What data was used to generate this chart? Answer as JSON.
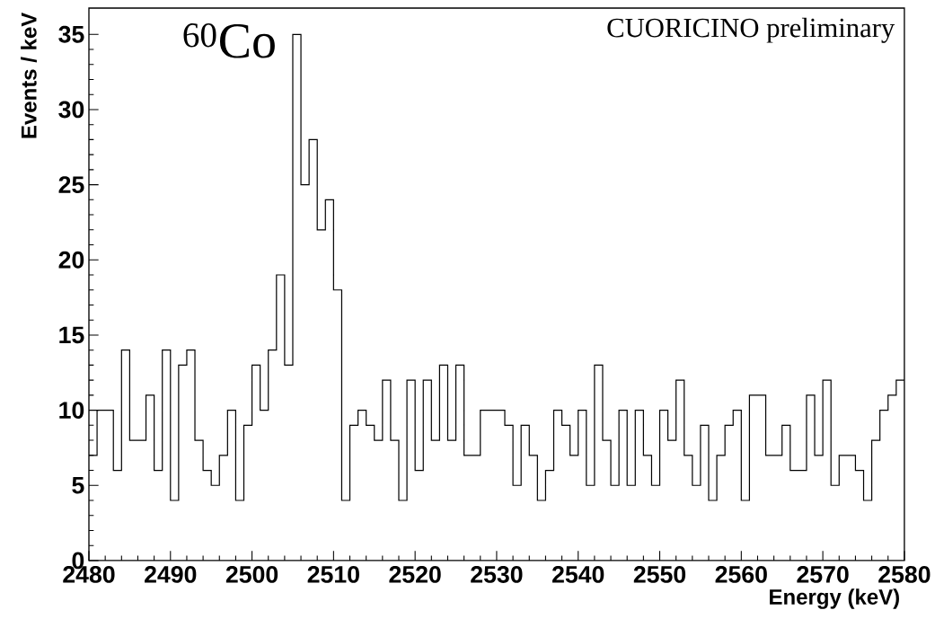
{
  "chart_data": {
    "type": "histogram",
    "xlabel": "Energy (keV)",
    "ylabel": "Events / keV",
    "annotations": [
      "$^{60}$Co",
      "CUORICINO preliminary"
    ],
    "color": "#000000",
    "bins": [
      2480,
      2481,
      2482,
      2483,
      2484,
      2485,
      2486,
      2487,
      2488,
      2489,
      2490,
      2491,
      2492,
      2493,
      2494,
      2495,
      2496,
      2497,
      2498,
      2499,
      2500,
      2501,
      2502,
      2503,
      2504,
      2505,
      2506,
      2507,
      2508,
      2509,
      2510,
      2511,
      2512,
      2513,
      2514,
      2515,
      2516,
      2517,
      2518,
      2519,
      2520,
      2521,
      2522,
      2523,
      2524,
      2525,
      2526,
      2527,
      2528,
      2529,
      2530,
      2531,
      2532,
      2533,
      2534,
      2535,
      2536,
      2537,
      2538,
      2539,
      2540,
      2541,
      2542,
      2543,
      2544,
      2545,
      2546,
      2547,
      2548,
      2549,
      2550,
      2551,
      2552,
      2553,
      2554,
      2555,
      2556,
      2557,
      2558,
      2559,
      2560,
      2561,
      2562,
      2563,
      2564,
      2565,
      2566,
      2567,
      2568,
      2569,
      2570,
      2571,
      2572,
      2573,
      2574,
      2575,
      2576,
      2577,
      2578,
      2579,
      2580
    ],
    "values": [
      7,
      10,
      10,
      6,
      14,
      8,
      8,
      11,
      6,
      14,
      4,
      13,
      14,
      8,
      6,
      5,
      7,
      10,
      4,
      9,
      13,
      10,
      14,
      19,
      13,
      35,
      25,
      28,
      22,
      24,
      18,
      4,
      9,
      10,
      9,
      8,
      12,
      8,
      4,
      12,
      6,
      12,
      8,
      13,
      8,
      13,
      7,
      7,
      10,
      10,
      10,
      9,
      5,
      9,
      7,
      4,
      6,
      10,
      9,
      7,
      10,
      5,
      13,
      8,
      5,
      10,
      5,
      10,
      7,
      5,
      10,
      8,
      12,
      7,
      5,
      9,
      4,
      7,
      9,
      10,
      4,
      11,
      11,
      7,
      7,
      9,
      6,
      6,
      11,
      7,
      12,
      5,
      7,
      7,
      6,
      4,
      8,
      10,
      11,
      12
    ],
    "xlim": [
      2480,
      2580
    ],
    "ylim": [
      0,
      36.75
    ],
    "xticks": [
      2480,
      2490,
      2500,
      2510,
      2520,
      2530,
      2540,
      2550,
      2560,
      2570,
      2580
    ],
    "yticks": [
      0,
      5,
      10,
      15,
      20,
      25,
      30,
      35
    ]
  }
}
